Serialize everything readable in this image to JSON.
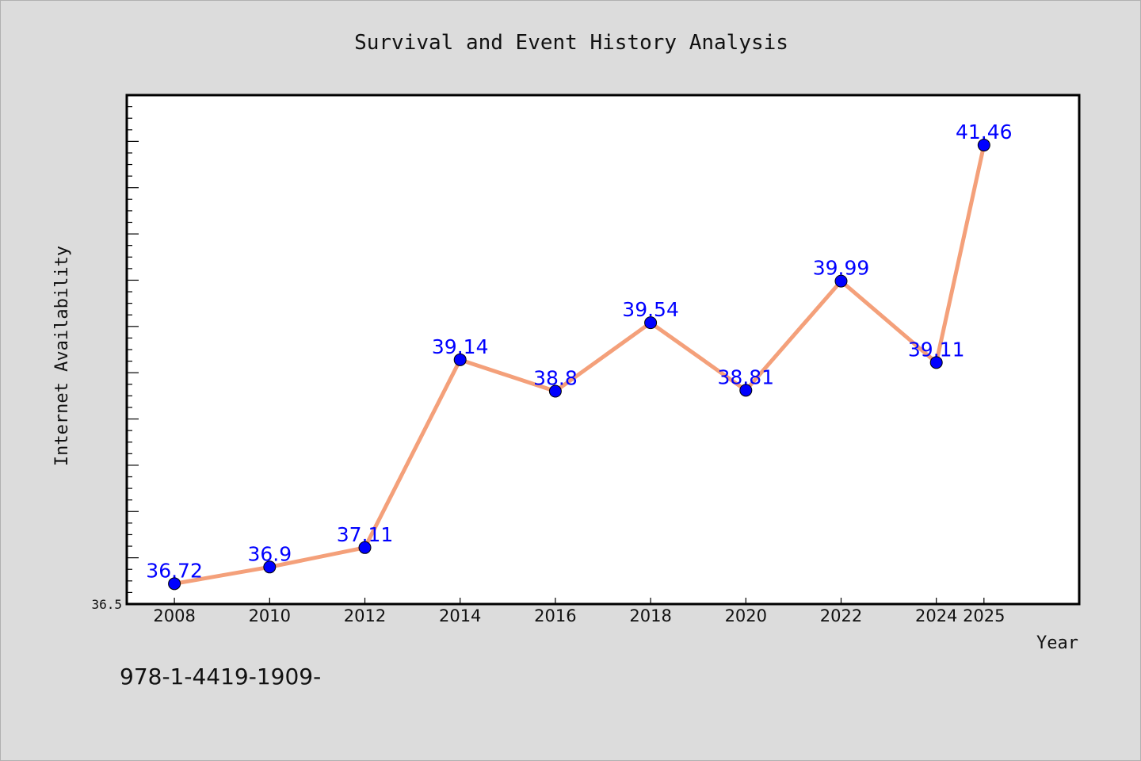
{
  "footer": {
    "text": "978-1-4419-1909-"
  },
  "colors": {
    "line": "#f4a07a",
    "marker": "#0000ff",
    "label": "#0000ff",
    "background": "#dcdcdc",
    "plot_background": "#ffffff"
  },
  "chart_data": {
    "type": "line",
    "title": "Survival and Event History Analysis",
    "xlabel": "Year",
    "ylabel": "Internet Availability",
    "x": [
      "2008",
      "2010",
      "2012",
      "2014",
      "2016",
      "2018",
      "2020",
      "2022",
      "2024",
      "2025"
    ],
    "values": [
      36.72,
      36.9,
      37.11,
      39.14,
      38.8,
      39.54,
      38.81,
      39.99,
      39.11,
      41.46
    ],
    "data_labels": [
      "36.72",
      "36.9",
      "37.11",
      "39.14",
      "38.8",
      "39.54",
      "38.81",
      "39.99",
      "39.11",
      "41.46"
    ],
    "ylim": [
      36.5,
      42.0
    ],
    "y_tick_labels": [
      "36.5"
    ],
    "grid": false,
    "legend": "none"
  }
}
